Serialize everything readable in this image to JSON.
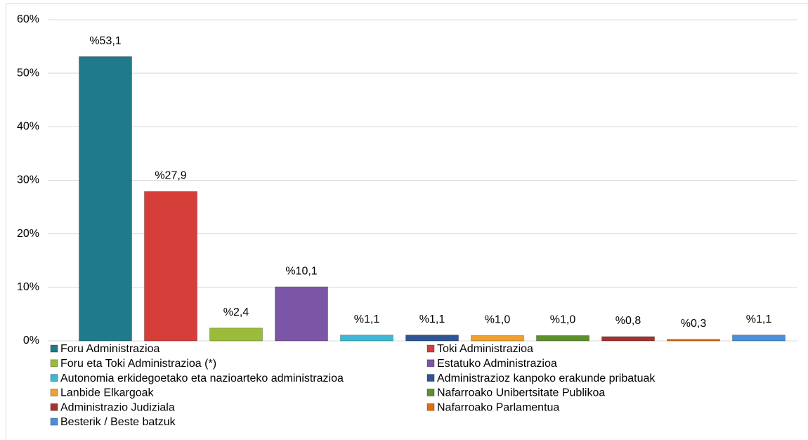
{
  "chart_data": {
    "type": "bar",
    "categories": [
      "Foru Administrazioa",
      "Toki Administrazioa",
      "Foru eta Toki Administrazioa (*)",
      "Estatuko Administrazioa",
      "Autonomia erkidegoetako eta nazioarteko administrazioa",
      "Administrazioz kanpoko erakunde pribatuak",
      "Lanbide Elkargoak",
      "Nafarroako Unibertsitate Publikoa",
      "Administrazio Judiziala",
      "Nafarroako Parlamentua",
      "Besterik / Beste batzuk"
    ],
    "values": [
      53.1,
      27.9,
      2.4,
      10.1,
      1.1,
      1.1,
      1.0,
      1.0,
      0.8,
      0.3,
      1.1
    ],
    "value_labels": [
      "%53,1",
      "%27,9",
      "%2,4",
      "%10,1",
      "%1,1",
      "%1,1",
      "%1,0",
      "%1,0",
      "%0,8",
      "%0,3",
      "%1,1"
    ],
    "colors": [
      "#1f7a8c",
      "#d63e3a",
      "#9bbb3b",
      "#7b55a6",
      "#3fb7d6",
      "#2f5597",
      "#f0a030",
      "#5e8f2e",
      "#a33333",
      "#e36c0a",
      "#4a90d9"
    ],
    "ylim": [
      0,
      60
    ],
    "yticks": [
      {
        "value": 0,
        "label": "0%"
      },
      {
        "value": 10,
        "label": "10%"
      },
      {
        "value": 20,
        "label": "20%"
      },
      {
        "value": 30,
        "label": "30%"
      },
      {
        "value": 40,
        "label": "40%"
      },
      {
        "value": 50,
        "label": "50%"
      },
      {
        "value": 60,
        "label": "60%"
      }
    ],
    "grid": true,
    "legend": "bottom"
  }
}
